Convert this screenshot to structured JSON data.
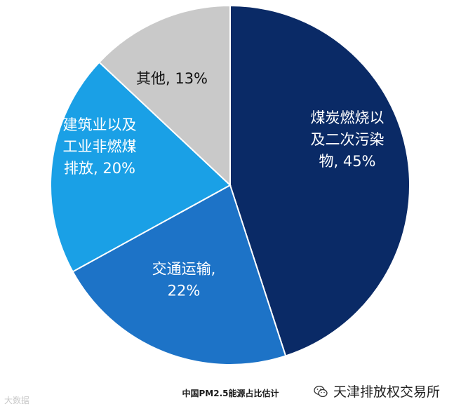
{
  "chart_data": {
    "type": "pie",
    "slices": [
      {
        "label_lines": [
          "煤炭燃烧以",
          "及二次污染",
          "物, 45%"
        ],
        "value": 45,
        "color": "#0a2a66",
        "text_color": "#ffffff"
      },
      {
        "label_lines": [
          "交通运输,",
          "22%"
        ],
        "value": 22,
        "color": "#1d73c7",
        "text_color": "#ffffff"
      },
      {
        "label_lines": [
          "建筑业以及",
          "工业非燃煤",
          "排放, 20%"
        ],
        "value": 20,
        "color": "#1aa0e6",
        "text_color": "#ffffff"
      },
      {
        "label_lines": [
          "其他, 13%"
        ],
        "value": 13,
        "color": "#c9c9c9",
        "text_color": "#111111"
      }
    ],
    "start": "12 o'clock",
    "direction": "clockwise"
  },
  "caption": "中国PM2.5能源占比估计",
  "brand": {
    "text": "天津排放权交易所",
    "icon": "wechat-icon"
  },
  "watermark": "大数据"
}
